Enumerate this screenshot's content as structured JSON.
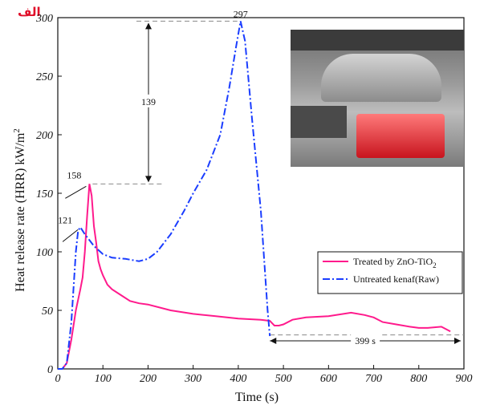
{
  "corner_label": "الف",
  "chart_data": {
    "type": "line",
    "xlabel": "Time (s)",
    "ylabel": "Heat release rate (HRR) kW/m2",
    "xlim": [
      0,
      900
    ],
    "ylim": [
      0,
      300
    ],
    "x_ticks": [
      "0",
      "100",
      "200",
      "300",
      "400",
      "500",
      "600",
      "700",
      "800",
      "900"
    ],
    "y_ticks": [
      "0",
      "50",
      "100",
      "150",
      "200",
      "250",
      "300"
    ],
    "series": [
      {
        "name": "Treated by ZnO-TiO2",
        "color": "#ff1a8c",
        "style": "solid",
        "x": [
          0,
          10,
          20,
          30,
          40,
          50,
          55,
          60,
          65,
          70,
          75,
          80,
          85,
          90,
          95,
          100,
          110,
          120,
          140,
          160,
          180,
          200,
          250,
          300,
          350,
          400,
          450,
          470,
          480,
          490,
          500,
          520,
          550,
          600,
          650,
          680,
          700,
          720,
          750,
          780,
          800,
          820,
          850,
          870
        ],
        "y": [
          0,
          0,
          5,
          25,
          50,
          68,
          78,
          100,
          130,
          158,
          148,
          122,
          108,
          92,
          85,
          80,
          72,
          68,
          63,
          58,
          56,
          55,
          50,
          47,
          45,
          43,
          42,
          41,
          37,
          37,
          38,
          42,
          44,
          45,
          48,
          46,
          44,
          40,
          38,
          36,
          35,
          35,
          36,
          32
        ]
      },
      {
        "name": "Untreated kenaf(Raw)",
        "color": "#1a3dff",
        "style": "dash-dot",
        "x": [
          0,
          10,
          20,
          30,
          40,
          45,
          50,
          55,
          60,
          70,
          80,
          100,
          120,
          150,
          180,
          200,
          220,
          250,
          280,
          300,
          330,
          360,
          380,
          395,
          405,
          415,
          430,
          450,
          465,
          470
        ],
        "y": [
          0,
          0,
          5,
          40,
          100,
          118,
          121,
          118,
          115,
          110,
          105,
          98,
          95,
          94,
          92,
          94,
          100,
          115,
          135,
          150,
          170,
          200,
          240,
          275,
          297,
          280,
          215,
          135,
          50,
          28
        ]
      }
    ],
    "annotations": [
      {
        "text": "297",
        "x": 405,
        "y": 297
      },
      {
        "text": "158",
        "x": 70,
        "y": 158
      },
      {
        "text": "121",
        "x": 50,
        "y": 121
      },
      {
        "text": "139",
        "note": "difference between peaks"
      },
      {
        "text": "399 s",
        "note": "time span marker"
      }
    ],
    "legend_position": "right, lower middle",
    "grid": false
  }
}
